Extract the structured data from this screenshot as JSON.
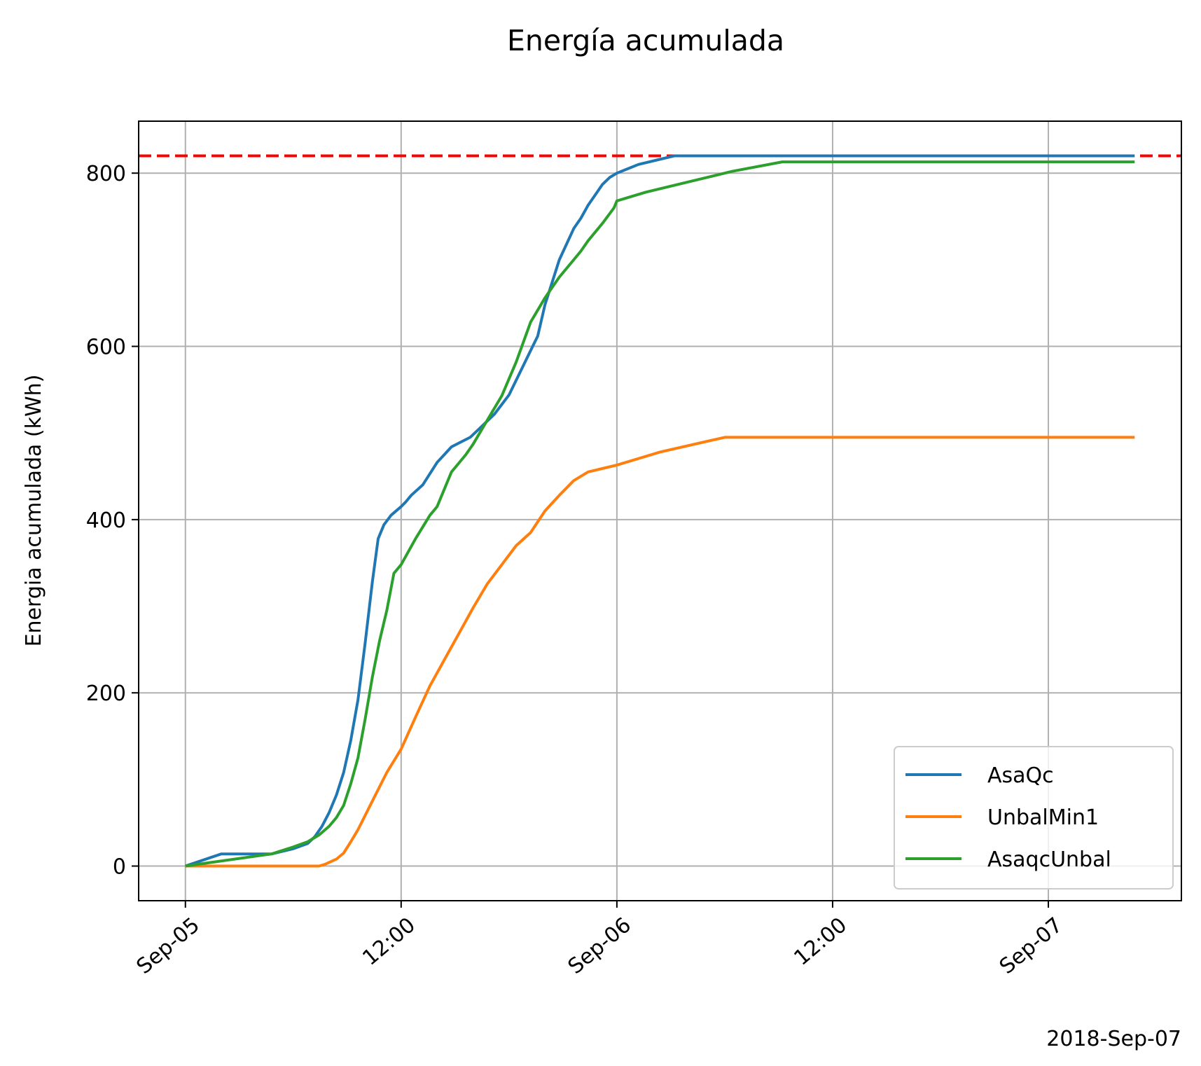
{
  "chart_data": {
    "type": "line",
    "title": "Energía acumulada",
    "ylabel": "Energia acumulada (kWh)",
    "xlabel": "",
    "offset_label": "2018-Sep-07",
    "x_unit": "hours",
    "xlim": [
      -3.25,
      69.25
    ],
    "ylim": [
      -40,
      860
    ],
    "yticks": [
      0,
      200,
      400,
      600,
      800
    ],
    "xticks": [
      {
        "value": 0,
        "label": "Sep-05"
      },
      {
        "value": 15,
        "label": "12:00"
      },
      {
        "value": 30,
        "label": "Sep-06"
      },
      {
        "value": 45,
        "label": "12:00"
      },
      {
        "value": 60,
        "label": "Sep-07"
      }
    ],
    "grid": true,
    "legend_position": "lower right",
    "reference_line": {
      "y": 820,
      "color": "#ff0000",
      "style": "dashed"
    },
    "series": [
      {
        "name": "AsaQc",
        "color": "#1f77b4",
        "points": [
          [
            0,
            0
          ],
          [
            2.5,
            14
          ],
          [
            6,
            14
          ],
          [
            7.5,
            20
          ],
          [
            8.5,
            26
          ],
          [
            9,
            34
          ],
          [
            9.5,
            46
          ],
          [
            10,
            62
          ],
          [
            10.5,
            82
          ],
          [
            11,
            108
          ],
          [
            11.5,
            145
          ],
          [
            12,
            192
          ],
          [
            12.5,
            258
          ],
          [
            13,
            328
          ],
          [
            13.4,
            378
          ],
          [
            13.8,
            394
          ],
          [
            14.3,
            405
          ],
          [
            15,
            415
          ],
          [
            15.3,
            420
          ],
          [
            15.7,
            428
          ],
          [
            16.5,
            440
          ],
          [
            17.5,
            466
          ],
          [
            18.5,
            484
          ],
          [
            19.2,
            490
          ],
          [
            19.8,
            495
          ],
          [
            20.5,
            506
          ],
          [
            21.5,
            522
          ],
          [
            22.5,
            544
          ],
          [
            23.5,
            578
          ],
          [
            24.5,
            612
          ],
          [
            25,
            648
          ],
          [
            26,
            700
          ],
          [
            27,
            736
          ],
          [
            27.5,
            748
          ],
          [
            28,
            763
          ],
          [
            28.5,
            775
          ],
          [
            29,
            787
          ],
          [
            29.5,
            795
          ],
          [
            30,
            800
          ],
          [
            31.5,
            810
          ],
          [
            34,
            820
          ],
          [
            66,
            820
          ]
        ]
      },
      {
        "name": "UnbalMin1",
        "color": "#ff7f0e",
        "points": [
          [
            0,
            0
          ],
          [
            9.3,
            0
          ],
          [
            9.7,
            2
          ],
          [
            10.5,
            8
          ],
          [
            11,
            15
          ],
          [
            11.5,
            28
          ],
          [
            12,
            42
          ],
          [
            13,
            75
          ],
          [
            14,
            108
          ],
          [
            15,
            135
          ],
          [
            16,
            172
          ],
          [
            17,
            208
          ],
          [
            18,
            238
          ],
          [
            19,
            268
          ],
          [
            20,
            298
          ],
          [
            21,
            326
          ],
          [
            22,
            348
          ],
          [
            23,
            370
          ],
          [
            24,
            385
          ],
          [
            25,
            410
          ],
          [
            26,
            428
          ],
          [
            27,
            445
          ],
          [
            28,
            455
          ],
          [
            30,
            463
          ],
          [
            33,
            478
          ],
          [
            37.5,
            495
          ],
          [
            66,
            495
          ]
        ]
      },
      {
        "name": "AsaqcUnbal",
        "color": "#2ca02c",
        "points": [
          [
            0,
            0
          ],
          [
            6,
            14
          ],
          [
            7.5,
            22
          ],
          [
            8.5,
            28
          ],
          [
            9.3,
            36
          ],
          [
            10,
            46
          ],
          [
            10.5,
            56
          ],
          [
            11,
            70
          ],
          [
            11.5,
            95
          ],
          [
            12,
            125
          ],
          [
            12.5,
            170
          ],
          [
            13,
            218
          ],
          [
            13.5,
            260
          ],
          [
            14,
            295
          ],
          [
            14.5,
            338
          ],
          [
            15,
            348
          ],
          [
            16,
            378
          ],
          [
            17,
            405
          ],
          [
            17.5,
            415
          ],
          [
            18,
            435
          ],
          [
            18.5,
            455
          ],
          [
            19,
            465
          ],
          [
            19.5,
            475
          ],
          [
            20,
            487
          ],
          [
            21,
            515
          ],
          [
            22,
            543
          ],
          [
            23,
            582
          ],
          [
            23.5,
            605
          ],
          [
            24,
            628
          ],
          [
            25,
            656
          ],
          [
            26,
            680
          ],
          [
            27,
            700
          ],
          [
            27.5,
            710
          ],
          [
            28,
            722
          ],
          [
            29,
            742
          ],
          [
            29.8,
            760
          ],
          [
            30,
            768
          ],
          [
            32,
            778
          ],
          [
            35,
            790
          ],
          [
            38,
            802
          ],
          [
            41.5,
            813
          ],
          [
            66,
            813
          ]
        ]
      }
    ]
  }
}
